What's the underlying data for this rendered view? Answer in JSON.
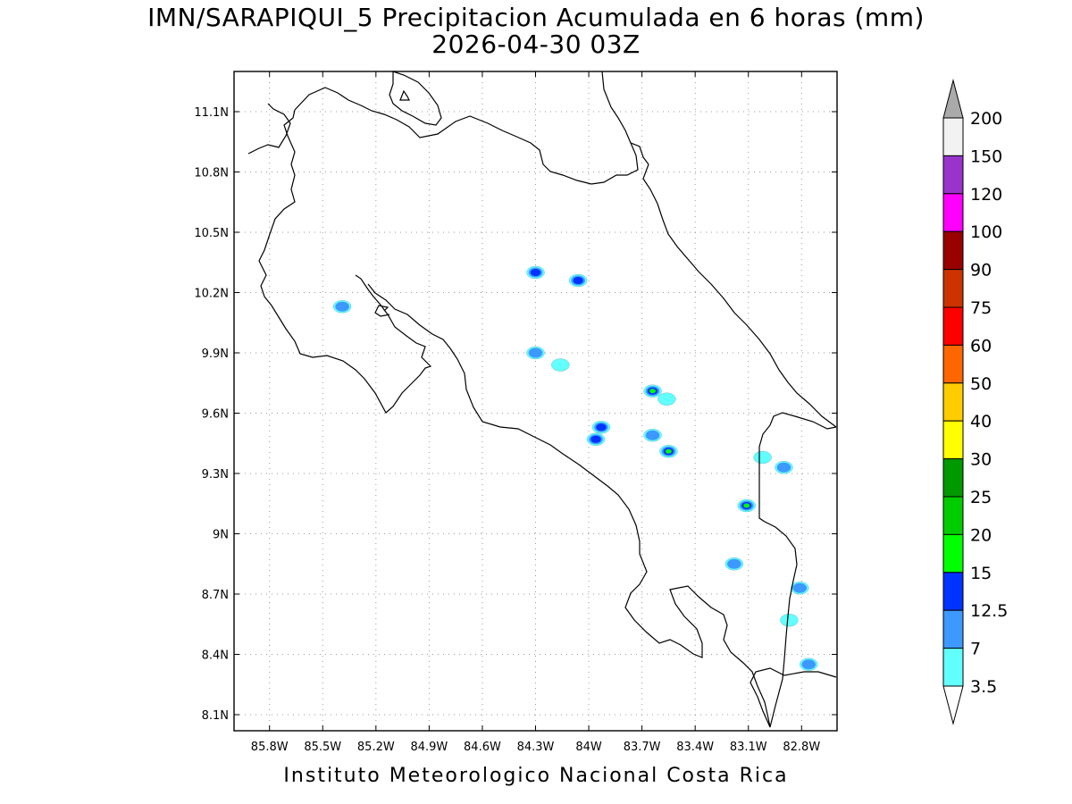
{
  "title": {
    "line1": "IMN/SARAPIQUI_5 Precipitacion Acumulada en 6 horas (mm)",
    "line2": "2026-04-30 03Z"
  },
  "footer": "Instituto Meteorologico Nacional Costa Rica",
  "map": {
    "lon_range": [
      -86.0,
      -82.6
    ],
    "lat_range": [
      8.02,
      11.3
    ],
    "lon_ticks": [
      {
        "value": -85.8,
        "label": "85.8W"
      },
      {
        "value": -85.5,
        "label": "85.5W"
      },
      {
        "value": -85.2,
        "label": "85.2W"
      },
      {
        "value": -84.9,
        "label": "84.9W"
      },
      {
        "value": -84.6,
        "label": "84.6W"
      },
      {
        "value": -84.3,
        "label": "84.3W"
      },
      {
        "value": -84.0,
        "label": "84W"
      },
      {
        "value": -83.7,
        "label": "83.7W"
      },
      {
        "value": -83.4,
        "label": "83.4W"
      },
      {
        "value": -83.1,
        "label": "83.1W"
      },
      {
        "value": -82.8,
        "label": "82.8W"
      }
    ],
    "lat_ticks": [
      {
        "value": 11.1,
        "label": "11.1N"
      },
      {
        "value": 10.8,
        "label": "10.8N"
      },
      {
        "value": 10.5,
        "label": "10.5N"
      },
      {
        "value": 10.2,
        "label": "10.2N"
      },
      {
        "value": 9.9,
        "label": "9.9N"
      },
      {
        "value": 9.6,
        "label": "9.6N"
      },
      {
        "value": 9.3,
        "label": "9.3N"
      },
      {
        "value": 9.0,
        "label": "9N"
      },
      {
        "value": 8.7,
        "label": "8.7N"
      },
      {
        "value": 8.4,
        "label": "8.4N"
      },
      {
        "value": 8.1,
        "label": "8.1N"
      }
    ],
    "grid": true,
    "precip_cells": [
      {
        "lon": -84.3,
        "lat": 10.3,
        "max_mm": 12.5
      },
      {
        "lon": -84.06,
        "lat": 10.26,
        "max_mm": 12.5
      },
      {
        "lon": -85.39,
        "lat": 10.13,
        "max_mm": 7
      },
      {
        "lon": -84.3,
        "lat": 9.9,
        "max_mm": 7
      },
      {
        "lon": -84.16,
        "lat": 9.84,
        "max_mm": 3.5
      },
      {
        "lon": -83.64,
        "lat": 9.71,
        "max_mm": 25
      },
      {
        "lon": -83.56,
        "lat": 9.67,
        "max_mm": 3.5
      },
      {
        "lon": -83.93,
        "lat": 9.53,
        "max_mm": 12.5
      },
      {
        "lon": -83.96,
        "lat": 9.47,
        "max_mm": 12.5
      },
      {
        "lon": -83.64,
        "lat": 9.49,
        "max_mm": 7
      },
      {
        "lon": -83.55,
        "lat": 9.41,
        "max_mm": 20
      },
      {
        "lon": -83.02,
        "lat": 9.38,
        "max_mm": 3.5
      },
      {
        "lon": -82.9,
        "lat": 9.33,
        "max_mm": 7
      },
      {
        "lon": -83.11,
        "lat": 9.14,
        "max_mm": 15
      },
      {
        "lon": -83.18,
        "lat": 8.85,
        "max_mm": 7
      },
      {
        "lon": -82.81,
        "lat": 8.73,
        "max_mm": 7
      },
      {
        "lon": -82.87,
        "lat": 8.57,
        "max_mm": 3.5
      },
      {
        "lon": -82.76,
        "lat": 8.35,
        "max_mm": 7
      }
    ]
  },
  "colorbar": {
    "levels": [
      {
        "label": "3.5",
        "color": "#62ffff"
      },
      {
        "label": "7",
        "color": "#3d99ff"
      },
      {
        "label": "12.5",
        "color": "#0033ff"
      },
      {
        "label": "15",
        "color": "#00ff00"
      },
      {
        "label": "20",
        "color": "#00cc00"
      },
      {
        "label": "25",
        "color": "#009900"
      },
      {
        "label": "30",
        "color": "#ffff00"
      },
      {
        "label": "40",
        "color": "#ffcc00"
      },
      {
        "label": "50",
        "color": "#ff6600"
      },
      {
        "label": "60",
        "color": "#ff0000"
      },
      {
        "label": "75",
        "color": "#cc3300"
      },
      {
        "label": "90",
        "color": "#990000"
      },
      {
        "label": "100",
        "color": "#ff00ff"
      },
      {
        "label": "120",
        "color": "#9933cc"
      },
      {
        "label": "150",
        "color": "#f2f2f2"
      },
      {
        "label": "200",
        "color": "#aaaaaa"
      }
    ],
    "below_color": "#ffffff",
    "above_color": "#aaaaaa"
  }
}
